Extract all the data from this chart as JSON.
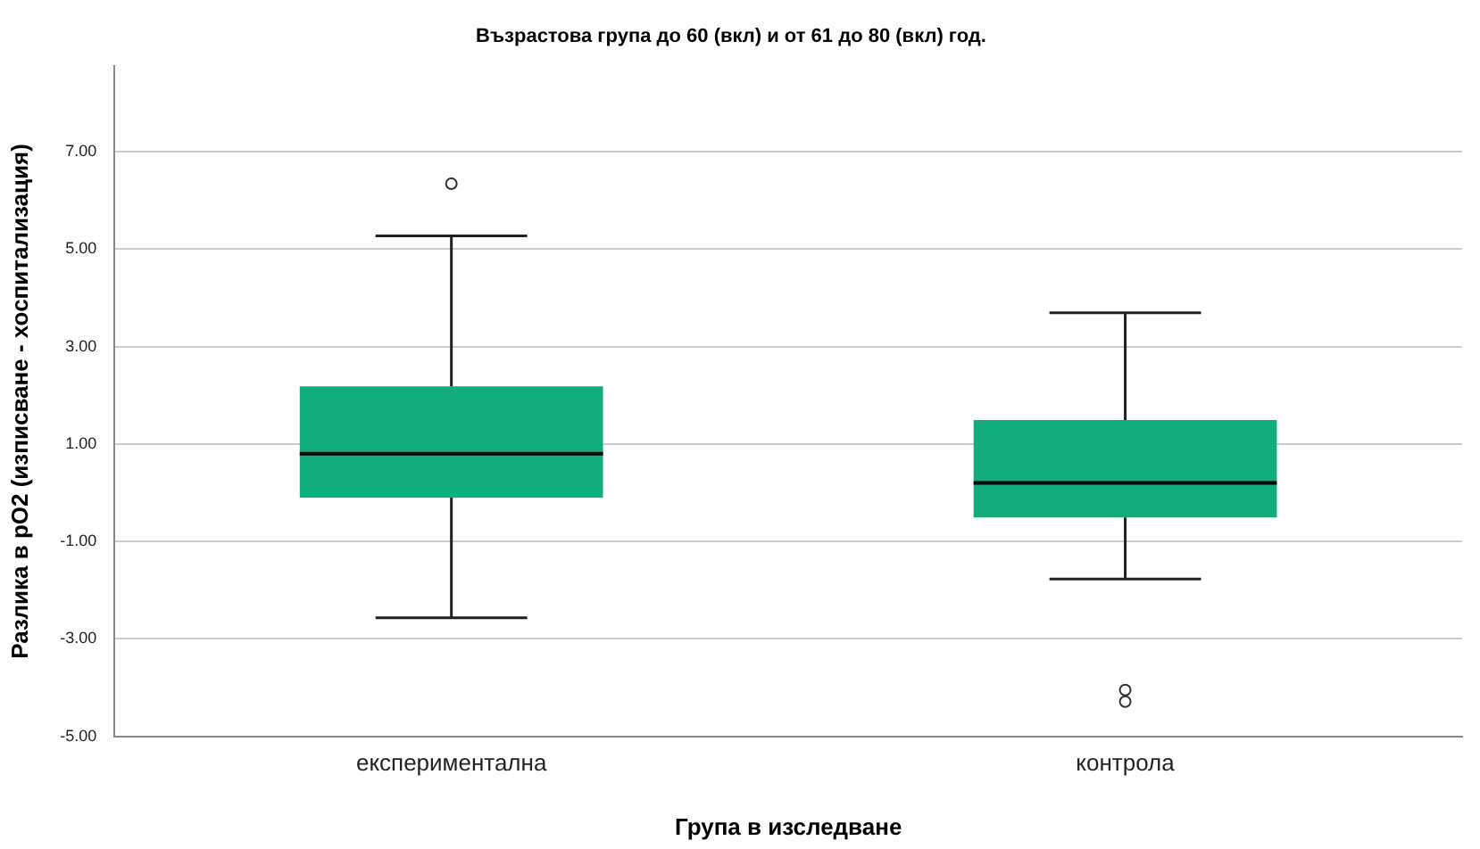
{
  "chart_data": {
    "type": "box",
    "title": "Възрастова група до 60 (вкл) и от 61 до 80 (вкл) год.",
    "xlabel": "Група в изследване",
    "ylabel": "Разлика в pO2 (изписване - хоспитализация)",
    "categories": [
      "експериментална",
      "контрола"
    ],
    "series": [
      {
        "color": "#12ab7b",
        "boxes": [
          {
            "low": -2.57,
            "q1": -0.1,
            "median": 0.8,
            "q3": 2.18,
            "high": 5.27,
            "outliers": [
              6.34
            ]
          },
          {
            "low": -1.77,
            "q1": -0.51,
            "median": 0.2,
            "q3": 1.49,
            "high": 3.69,
            "outliers": [
              -4.05,
              -4.29
            ]
          }
        ]
      }
    ],
    "ylim": [
      -5,
      8.75
    ],
    "yticks": [
      {
        "value": -5,
        "label": "-5.00"
      },
      {
        "value": -3,
        "label": "-3.00"
      },
      {
        "value": -1,
        "label": "-1.00"
      },
      {
        "value": 1,
        "label": "1.00"
      },
      {
        "value": 3,
        "label": "3.00"
      },
      {
        "value": 5,
        "label": "5.00"
      },
      {
        "value": 7,
        "label": "7.00"
      }
    ],
    "grid": "y"
  }
}
